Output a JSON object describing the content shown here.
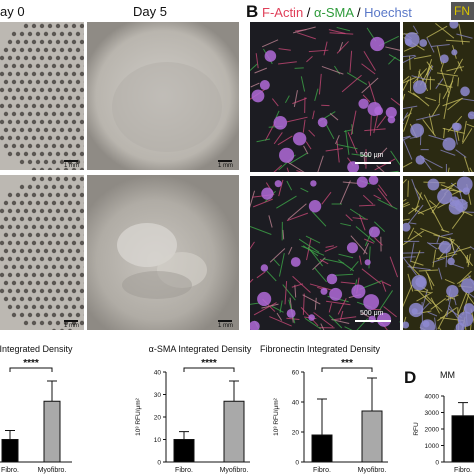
{
  "panelA": {
    "day0_label": "ay 0",
    "day5_label": "Day 5",
    "scale_label": "1 mm"
  },
  "panelB": {
    "letter": "B",
    "legend": [
      {
        "text": "F-Actin",
        "color": "#e0405a"
      },
      {
        "text": " / ",
        "color": "#111111"
      },
      {
        "text": "α-SMA",
        "color": "#2e9b3a"
      },
      {
        "text": " / ",
        "color": "#111111"
      },
      {
        "text": "Hoechst",
        "color": "#5a78c8"
      }
    ],
    "fn_label": "FN",
    "fn_color": "#c8b400",
    "scale_label": "500 μm"
  },
  "panelD": {
    "letter": "D",
    "title": "MM"
  },
  "chart_data": [
    {
      "type": "bar",
      "title": "Integrated Density",
      "categories": [
        "Fibro.",
        "Myofibro."
      ],
      "values": [
        10,
        27
      ],
      "errors": [
        4,
        9
      ],
      "colors": [
        "#000000",
        "#a9a9a9"
      ],
      "significance": "****",
      "ylim": [
        0,
        40
      ]
    },
    {
      "type": "bar",
      "title": "α-SMA Integrated Density",
      "categories": [
        "Fibro.",
        "Myofibro."
      ],
      "values": [
        10,
        27
      ],
      "errors": [
        3.5,
        9
      ],
      "colors": [
        "#000000",
        "#a9a9a9"
      ],
      "significance": "****",
      "ylabel": "10³ RFU/μm²",
      "yticks": [
        0,
        10,
        20,
        30,
        40
      ],
      "ylim": [
        0,
        40
      ]
    },
    {
      "type": "bar",
      "title": "Fibronectin Integrated Density",
      "categories": [
        "Fibro.",
        "Myofibro."
      ],
      "values": [
        18,
        34
      ],
      "errors": [
        24,
        22
      ],
      "colors": [
        "#000000",
        "#a9a9a9"
      ],
      "significance": "***",
      "ylabel": "10³ RFU/μm²",
      "yticks": [
        0,
        20,
        40,
        60
      ],
      "ylim": [
        0,
        60
      ]
    },
    {
      "type": "bar",
      "title": "MM",
      "categories": [
        "Fibro."
      ],
      "values": [
        2800
      ],
      "errors": [
        800
      ],
      "colors": [
        "#000000"
      ],
      "ylabel": "RFU",
      "yticks": [
        0,
        1000,
        2000,
        3000,
        4000
      ],
      "ylim": [
        0,
        4000
      ]
    }
  ]
}
